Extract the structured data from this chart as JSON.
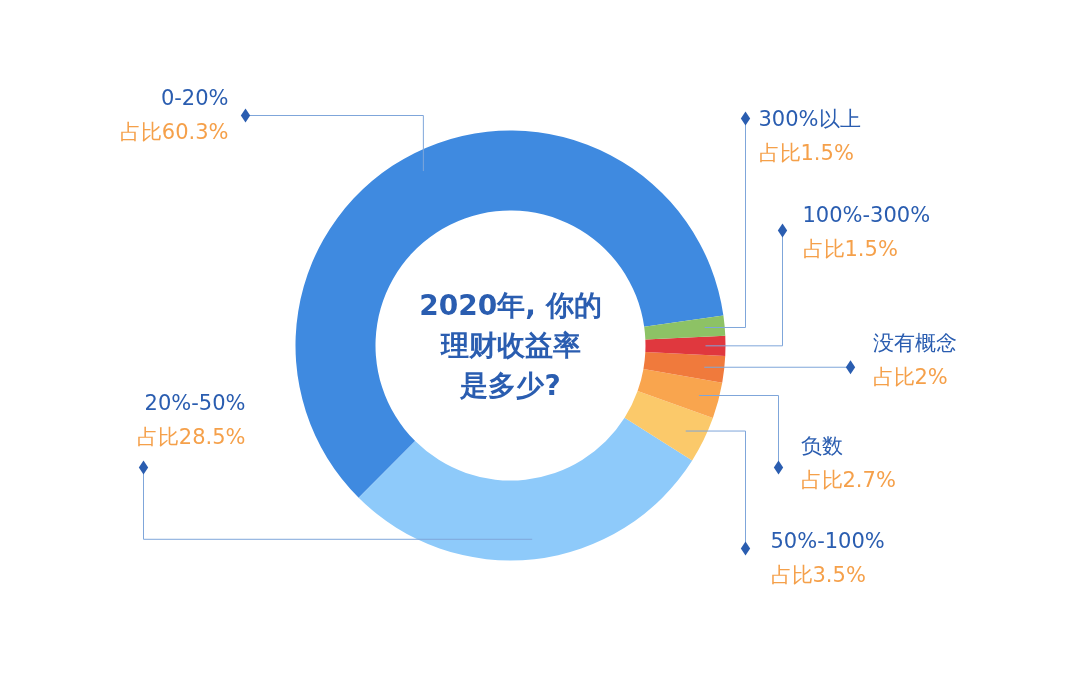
{
  "chart_data": {
    "type": "donut",
    "title": "2020年, 你的理财收益率是多少?",
    "categories": [
      "0-20%",
      "20%-50%",
      "50%-100%",
      "负数",
      "没有概念",
      "100%-300%",
      "300%以上"
    ],
    "values": [
      60.3,
      28.5,
      3.5,
      2.7,
      2,
      1.5,
      1.5
    ],
    "value_labels": [
      "占比60.3%",
      "占比28.5%",
      "占比3.5%",
      "占比2.7%",
      "占比2%",
      "占比1.5%",
      "占比1.5%"
    ],
    "colors": [
      "#3f8ae0",
      "#8ecafa",
      "#fbc96a",
      "#f9a54e",
      "#f07a3c",
      "#e0383e",
      "#8dc265"
    ]
  }
}
